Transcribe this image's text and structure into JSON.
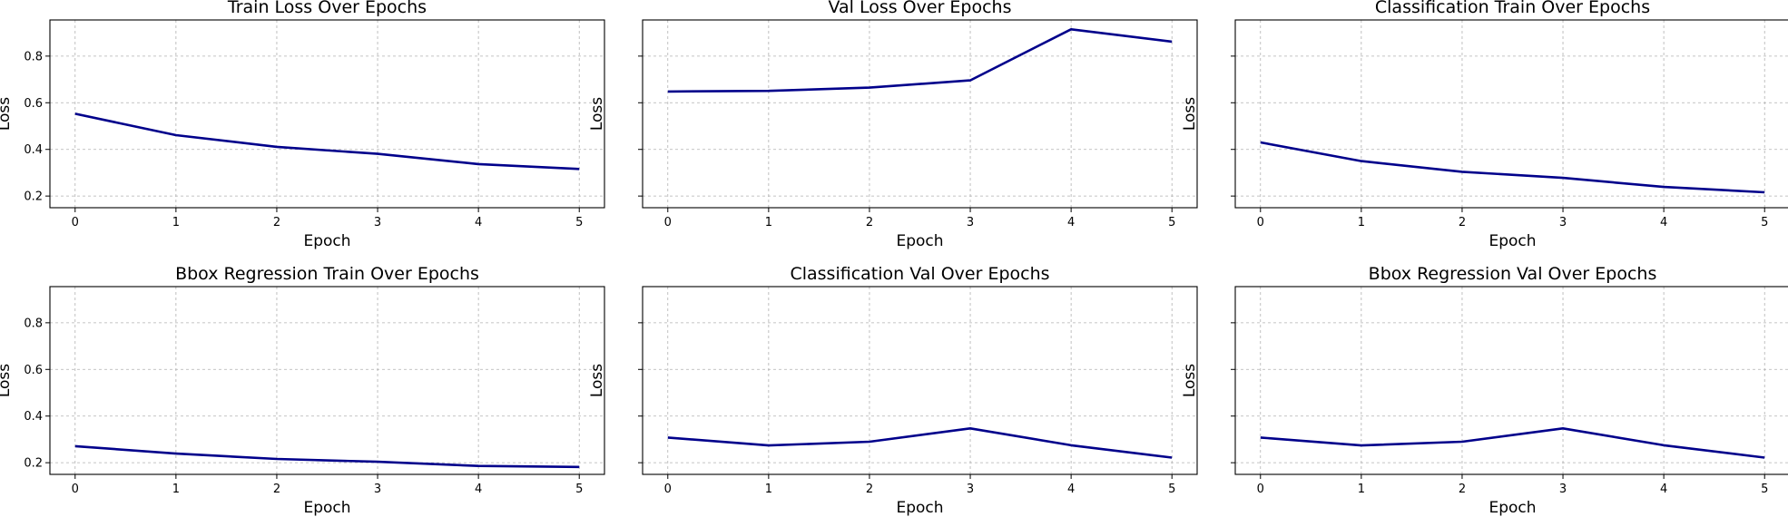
{
  "chart_data": [
    {
      "type": "line",
      "title": "Train Loss Over Epochs",
      "xlabel": "Epoch",
      "ylabel": "Loss",
      "x": [
        0,
        1,
        2,
        3,
        4,
        5
      ],
      "series": [
        {
          "values": [
            0.553,
            0.461,
            0.411,
            0.381,
            0.337,
            0.316
          ],
          "color": "#00008b"
        }
      ],
      "xticks": [
        "0",
        "1",
        "2",
        "3",
        "4",
        "5"
      ],
      "yticks": [
        "0.2",
        "0.4",
        "0.6",
        "0.8"
      ],
      "show_ytick_labels": true,
      "ylim": [
        0.15,
        0.955
      ],
      "xlim": [
        -0.25,
        5.25
      ],
      "grid": true
    },
    {
      "type": "line",
      "title": "Val Loss Over Epochs",
      "xlabel": "Epoch",
      "ylabel": "Loss",
      "x": [
        0,
        1,
        2,
        3,
        4,
        5
      ],
      "series": [
        {
          "values": [
            0.648,
            0.651,
            0.665,
            0.696,
            0.915,
            0.862
          ],
          "color": "#00008b"
        }
      ],
      "xticks": [
        "0",
        "1",
        "2",
        "3",
        "4",
        "5"
      ],
      "yticks": [
        "0.2",
        "0.4",
        "0.6",
        "0.8"
      ],
      "show_ytick_labels": false,
      "ylim": [
        0.15,
        0.955
      ],
      "xlim": [
        -0.25,
        5.25
      ],
      "grid": true
    },
    {
      "type": "line",
      "title": "Classification Train Over Epochs",
      "xlabel": "Epoch",
      "ylabel": "Loss",
      "x": [
        0,
        1,
        2,
        3,
        4,
        5
      ],
      "series": [
        {
          "values": [
            0.43,
            0.35,
            0.304,
            0.278,
            0.239,
            0.216
          ],
          "color": "#00008b"
        }
      ],
      "xticks": [
        "0",
        "1",
        "2",
        "3",
        "4",
        "5"
      ],
      "yticks": [
        "0.2",
        "0.4",
        "0.6",
        "0.8"
      ],
      "show_ytick_labels": false,
      "ylim": [
        0.15,
        0.955
      ],
      "xlim": [
        -0.25,
        5.25
      ],
      "grid": true
    },
    {
      "type": "line",
      "title": "Bbox Regression Train Over Epochs",
      "xlabel": "Epoch",
      "ylabel": "Loss",
      "x": [
        0,
        1,
        2,
        3,
        4,
        5
      ],
      "series": [
        {
          "values": [
            0.271,
            0.239,
            0.216,
            0.204,
            0.186,
            0.182
          ],
          "color": "#00008b"
        }
      ],
      "xticks": [
        "0",
        "1",
        "2",
        "3",
        "4",
        "5"
      ],
      "yticks": [
        "0.2",
        "0.4",
        "0.6",
        "0.8"
      ],
      "show_ytick_labels": true,
      "ylim": [
        0.15,
        0.955
      ],
      "xlim": [
        -0.25,
        5.25
      ],
      "grid": true
    },
    {
      "type": "line",
      "title": "Classification Val Over Epochs",
      "xlabel": "Epoch",
      "ylabel": "Loss",
      "x": [
        0,
        1,
        2,
        3,
        4,
        5
      ],
      "series": [
        {
          "values": [
            0.308,
            0.274,
            0.29,
            0.347,
            0.275,
            0.222
          ],
          "color": "#00008b"
        }
      ],
      "xticks": [
        "0",
        "1",
        "2",
        "3",
        "4",
        "5"
      ],
      "yticks": [
        "0.2",
        "0.4",
        "0.6",
        "0.8"
      ],
      "show_ytick_labels": false,
      "ylim": [
        0.15,
        0.955
      ],
      "xlim": [
        -0.25,
        5.25
      ],
      "grid": true
    },
    {
      "type": "line",
      "title": "Bbox Regression Val Over Epochs",
      "xlabel": "Epoch",
      "ylabel": "Loss",
      "x": [
        0,
        1,
        2,
        3,
        4,
        5
      ],
      "series": [
        {
          "values": [
            0.308,
            0.274,
            0.29,
            0.347,
            0.275,
            0.222
          ],
          "color": "#00008b"
        }
      ],
      "xticks": [
        "0",
        "1",
        "2",
        "3",
        "4",
        "5"
      ],
      "yticks": [
        "0.2",
        "0.4",
        "0.6",
        "0.8"
      ],
      "show_ytick_labels": false,
      "ylim": [
        0.15,
        0.955
      ],
      "xlim": [
        -0.25,
        5.25
      ],
      "grid": true
    }
  ]
}
